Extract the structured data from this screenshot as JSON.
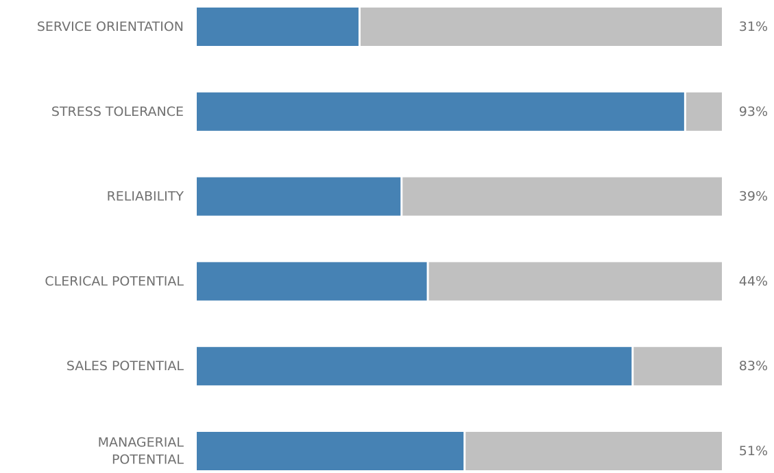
{
  "chart_data": {
    "type": "bar",
    "orientation": "horizontal",
    "stacked": true,
    "categories": [
      [
        "SERVICE ORIENTATION"
      ],
      [
        "STRESS TOLERANCE"
      ],
      [
        "RELIABILITY"
      ],
      [
        "CLERICAL POTENTIAL"
      ],
      [
        "SALES POTENTIAL"
      ],
      [
        "MANAGERIAL",
        "POTENTIAL"
      ]
    ],
    "values": [
      31,
      93,
      39,
      44,
      83,
      51
    ],
    "value_labels": [
      "31%",
      "93%",
      "39%",
      "44%",
      "83%",
      "51%"
    ],
    "xlim": [
      0,
      100
    ],
    "grid": false,
    "legend": "none",
    "colors": {
      "value": "#4682b4",
      "remainder": "#c0c0c0",
      "text": "#707070"
    }
  }
}
